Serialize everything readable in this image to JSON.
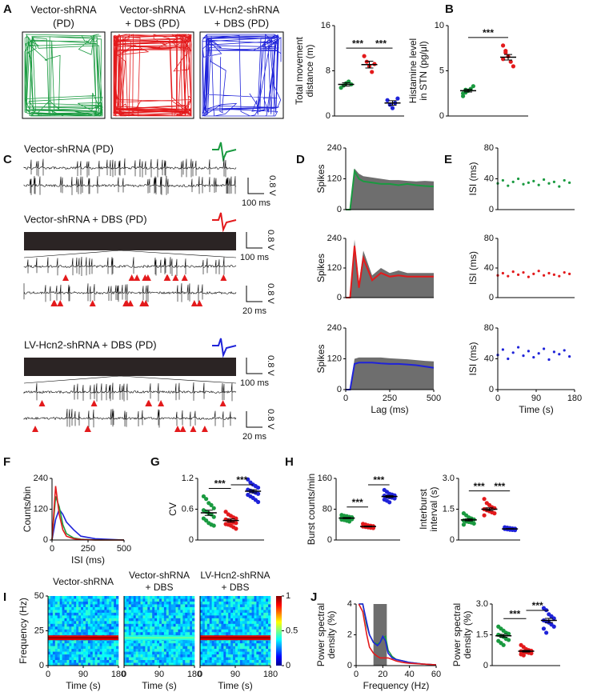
{
  "panel_labels": [
    "A",
    "B",
    "C",
    "D",
    "E",
    "F",
    "G",
    "H",
    "I",
    "J"
  ],
  "panel_a": {
    "titles": [
      [
        "Vector-shRNA",
        "(PD)"
      ],
      [
        "Vector-shRNA",
        "+ DBS (PD)"
      ],
      [
        "LV-Hcn2-shRNA",
        "+ DBS (PD)"
      ]
    ]
  },
  "panel_c": {
    "conditions": [
      "Vector-shRNA (PD)",
      "Vector-shRNA + DBS (PD)",
      "LV-Hcn2-shRNA + DBS (PD)"
    ],
    "voltage_scale": "0.8 V",
    "time_scales": [
      "100 ms",
      "20 ms"
    ]
  },
  "chart_data": [
    {
      "type": "dot",
      "ylabel": [
        "Total movement",
        "distance (m)"
      ],
      "ylim": [
        0,
        16
      ],
      "yticks": [
        0,
        8,
        16
      ],
      "series": [
        {
          "color": "#1a9a40",
          "values": [
            5.0,
            5.4,
            5.8,
            6.1,
            5.6
          ],
          "mean": 5.6,
          "sem": 0.3
        },
        {
          "color": "#e31a1c",
          "values": [
            10.6,
            9.6,
            8.8,
            7.8,
            9.2
          ],
          "mean": 9.1,
          "sem": 0.6
        },
        {
          "color": "#1f23d9",
          "values": [
            2.8,
            2.0,
            1.4,
            2.3,
            3.1
          ],
          "mean": 2.3,
          "sem": 0.4
        }
      ],
      "significance": [
        {
          "pair": [
            0,
            1
          ],
          "label": "***"
        },
        {
          "pair": [
            1,
            2
          ],
          "label": "***"
        }
      ]
    },
    {
      "type": "dot",
      "ylabel": [
        "Histamine level",
        "in STN (pg/μl)"
      ],
      "ylim": [
        0,
        10
      ],
      "yticks": [
        0,
        5,
        10
      ],
      "series": [
        {
          "color": "#1a9a40",
          "values": [
            2.2,
            2.6,
            2.8,
            3.0,
            3.3,
            2.5,
            2.9
          ],
          "mean": 2.8,
          "sem": 0.15
        },
        {
          "color": "#e31a1c",
          "values": [
            7.8,
            7.2,
            6.6,
            6.0,
            5.5,
            6.3,
            7.0
          ],
          "mean": 6.5,
          "sem": 0.3
        }
      ],
      "significance": [
        {
          "pair": [
            0,
            1
          ],
          "label": "***"
        }
      ]
    },
    {
      "type": "area_line",
      "ylabel": [
        "Spikes"
      ],
      "ylim": [
        0,
        240
      ],
      "yticks": [
        0,
        120,
        240
      ],
      "xlim": [
        0,
        500
      ],
      "x": [
        0,
        25,
        50,
        75,
        100,
        150,
        200,
        250,
        300,
        350,
        400,
        450,
        500
      ],
      "series": [
        {
          "color": "#6e6e6e",
          "values": [
            0,
            0,
            160,
            140,
            130,
            125,
            120,
            115,
            115,
            112,
            110,
            112,
            110
          ]
        },
        {
          "color": "#1a9a40",
          "values": [
            0,
            0,
            150,
            120,
            110,
            105,
            100,
            100,
            95,
            100,
            95,
            92,
            90
          ]
        }
      ]
    },
    {
      "type": "area_line",
      "ylabel": [
        "Spikes"
      ],
      "ylim": [
        0,
        240
      ],
      "yticks": [
        0,
        120,
        240
      ],
      "xlim": [
        0,
        500
      ],
      "x": [
        0,
        25,
        50,
        75,
        100,
        150,
        200,
        250,
        300,
        350,
        400,
        450,
        500
      ],
      "series": [
        {
          "color": "#6e6e6e",
          "values": [
            0,
            0,
            235,
            60,
            190,
            90,
            120,
            100,
            110,
            100,
            100,
            100,
            100
          ]
        },
        {
          "color": "#e31a1c",
          "values": [
            0,
            0,
            210,
            40,
            160,
            70,
            100,
            85,
            90,
            85,
            85,
            85,
            85
          ]
        }
      ]
    },
    {
      "type": "area_line",
      "ylabel": [
        "Spikes"
      ],
      "xlabel": "Lag (ms)",
      "ylim": [
        0,
        240
      ],
      "yticks": [
        0,
        120,
        240
      ],
      "xlim": [
        0,
        500
      ],
      "xticks": [
        0,
        250,
        500
      ],
      "x": [
        0,
        25,
        50,
        75,
        100,
        150,
        200,
        250,
        300,
        350,
        400,
        450,
        500
      ],
      "series": [
        {
          "color": "#6e6e6e",
          "values": [
            0,
            0,
            120,
            125,
            125,
            125,
            125,
            122,
            120,
            118,
            115,
            112,
            110
          ]
        },
        {
          "color": "#1f23d9",
          "values": [
            0,
            0,
            100,
            105,
            105,
            105,
            102,
            100,
            100,
            98,
            95,
            90,
            85
          ]
        }
      ]
    },
    {
      "type": "scatter",
      "ylabel": [
        "ISI (ms)"
      ],
      "ylim": [
        0,
        80
      ],
      "yticks": [
        0,
        40,
        80
      ],
      "xlim": [
        0,
        180
      ],
      "x": [
        0,
        12,
        24,
        36,
        48,
        60,
        72,
        84,
        96,
        108,
        120,
        132,
        144,
        156,
        168
      ],
      "series": [
        {
          "color": "#1a9a40",
          "values": [
            34,
            38,
            31,
            36,
            40,
            33,
            35,
            37,
            32,
            39,
            34,
            36,
            30,
            38,
            35
          ]
        }
      ]
    },
    {
      "type": "scatter",
      "ylabel": [
        "ISI (ms)"
      ],
      "ylim": [
        0,
        80
      ],
      "yticks": [
        0,
        40,
        80
      ],
      "xlim": [
        0,
        180
      ],
      "x": [
        0,
        12,
        24,
        36,
        48,
        60,
        72,
        84,
        96,
        108,
        120,
        132,
        144,
        156,
        168
      ],
      "series": [
        {
          "color": "#e31a1c",
          "values": [
            30,
            33,
            29,
            35,
            31,
            34,
            28,
            32,
            36,
            30,
            33,
            31,
            29,
            34,
            32
          ]
        }
      ]
    },
    {
      "type": "scatter",
      "ylabel": [
        "ISI (ms)"
      ],
      "xlabel": "Time (s)",
      "ylim": [
        0,
        80
      ],
      "yticks": [
        0,
        40,
        80
      ],
      "xlim": [
        0,
        180
      ],
      "xticks": [
        0,
        90,
        180
      ],
      "x": [
        0,
        12,
        24,
        36,
        48,
        60,
        72,
        84,
        96,
        108,
        120,
        132,
        144,
        156,
        168
      ],
      "series": [
        {
          "color": "#1f23d9",
          "values": [
            45,
            52,
            40,
            48,
            55,
            44,
            50,
            42,
            47,
            53,
            39,
            49,
            46,
            51,
            43
          ]
        }
      ]
    },
    {
      "type": "line",
      "ylabel": [
        "Counts/bin"
      ],
      "xlabel": "ISI (ms)",
      "ylim": [
        0,
        240
      ],
      "yticks": [
        0,
        120,
        240
      ],
      "xlim": [
        0,
        500
      ],
      "xticks": [
        0,
        250,
        500
      ],
      "x": [
        0,
        25,
        50,
        75,
        100,
        150,
        200,
        300,
        500
      ],
      "series": [
        {
          "color": "#1f23d9",
          "values": [
            0,
            80,
            120,
            100,
            70,
            40,
            15,
            5,
            0
          ]
        },
        {
          "color": "#1a9a40",
          "values": [
            0,
            170,
            130,
            60,
            25,
            8,
            3,
            0,
            0
          ]
        },
        {
          "color": "#e31a1c",
          "values": [
            0,
            210,
            100,
            40,
            15,
            5,
            2,
            0,
            0
          ]
        }
      ]
    },
    {
      "type": "dot",
      "ylabel": [
        "CV"
      ],
      "ylim": [
        0,
        1.2
      ],
      "yticks": [
        0,
        0.6,
        1.2
      ],
      "series": [
        {
          "color": "#1a9a40",
          "values": [
            0.85,
            0.8,
            0.72,
            0.68,
            0.62,
            0.58,
            0.55,
            0.52,
            0.5,
            0.45,
            0.42,
            0.38,
            0.33,
            0.3,
            0.28
          ],
          "mean": 0.53,
          "sem": 0.05
        },
        {
          "color": "#e31a1c",
          "values": [
            0.55,
            0.5,
            0.47,
            0.44,
            0.42,
            0.4,
            0.38,
            0.36,
            0.34,
            0.33,
            0.31,
            0.3,
            0.28,
            0.25,
            0.22
          ],
          "mean": 0.38,
          "sem": 0.03
        },
        {
          "color": "#1f23d9",
          "values": [
            1.18,
            1.12,
            1.08,
            1.05,
            1.02,
            0.98,
            0.96,
            0.94,
            0.92,
            0.9,
            0.88,
            0.85,
            0.82,
            0.78,
            0.74
          ],
          "mean": 0.95,
          "sem": 0.03
        }
      ],
      "significance": [
        {
          "pair": [
            0,
            1
          ],
          "label": "***"
        },
        {
          "pair": [
            1,
            2
          ],
          "label": "***"
        }
      ]
    },
    {
      "type": "dot",
      "ylabel": [
        "Burst counts/min"
      ],
      "ylim": [
        0,
        160
      ],
      "yticks": [
        0,
        80,
        160
      ],
      "series": [
        {
          "color": "#1a9a40",
          "values": [
            65,
            63,
            62,
            60,
            59,
            58,
            57,
            56,
            55,
            54,
            53,
            52,
            50,
            48
          ],
          "mean": 57,
          "sem": 1.5
        },
        {
          "color": "#e31a1c",
          "values": [
            42,
            40,
            38,
            37,
            36,
            35,
            34,
            33,
            32,
            31
          ],
          "mean": 35,
          "sem": 1
        },
        {
          "color": "#1f23d9",
          "values": [
            130,
            125,
            120,
            118,
            116,
            115,
            113,
            111,
            110,
            108,
            105,
            102,
            98
          ],
          "mean": 113,
          "sem": 2.5
        }
      ],
      "significance": [
        {
          "pair": [
            0,
            1
          ],
          "label": "***"
        },
        {
          "pair": [
            1,
            2
          ],
          "label": "***"
        }
      ]
    },
    {
      "type": "dot",
      "ylabel": [
        "Interburst",
        "interval (s)"
      ],
      "ylim": [
        0,
        3
      ],
      "yticks": [
        0,
        1.5,
        {
          "value": 3,
          "label": "3.0"
        }
      ],
      "series": [
        {
          "color": "#1a9a40",
          "values": [
            1.3,
            1.2,
            1.1,
            1.05,
            1.0,
            0.95,
            0.9,
            0.88,
            0.85,
            0.8,
            0.75
          ],
          "mean": 0.98,
          "sem": 0.05
        },
        {
          "color": "#e31a1c",
          "values": [
            2.0,
            1.8,
            1.7,
            1.6,
            1.55,
            1.5,
            1.45,
            1.4,
            1.35,
            1.3,
            1.2
          ],
          "mean": 1.5,
          "sem": 0.07
        },
        {
          "color": "#1f23d9",
          "values": [
            0.62,
            0.6,
            0.58,
            0.56,
            0.55,
            0.54,
            0.52,
            0.5,
            0.49,
            0.48
          ],
          "mean": 0.54,
          "sem": 0.015
        }
      ],
      "significance": [
        {
          "pair": [
            0,
            1
          ],
          "label": "***"
        },
        {
          "pair": [
            1,
            2
          ],
          "label": "***"
        }
      ]
    },
    {
      "type": "spectrogram",
      "title": [
        "Vector-shRNA"
      ],
      "title_color": "#1a9a40",
      "ylabel": [
        "Frequency (Hz)"
      ],
      "xlabel": "Time (s)",
      "ylim": [
        0,
        50
      ],
      "yticks": [
        0,
        25,
        50
      ],
      "xlim": [
        0,
        180
      ],
      "xticks": [
        0,
        90,
        180
      ],
      "band_frequency": 20,
      "band_power": 0.9
    },
    {
      "type": "spectrogram",
      "title": [
        "Vector-shRNA",
        "+ DBS"
      ],
      "title_color": "#e31a1c",
      "xlabel": "Time (s)",
      "ylim": [
        0,
        50
      ],
      "xlim": [
        0,
        180
      ],
      "xticks": [
        0,
        90,
        180
      ],
      "band_frequency": 20,
      "band_power": 0.4
    },
    {
      "type": "spectrogram",
      "title": [
        "LV-Hcn2-shRNA",
        "+ DBS"
      ],
      "title_color": "#1f23d9",
      "xlabel": "Time (s)",
      "ylim": [
        0,
        50
      ],
      "xlim": [
        0,
        180
      ],
      "xticks": [
        0,
        90,
        180
      ],
      "band_frequency": 20,
      "band_power": 0.9,
      "colorbar_ticks": [
        0,
        0.5,
        1
      ]
    },
    {
      "type": "line",
      "ylabel": [
        "Power spectral",
        "density (%)"
      ],
      "xlabel": "Frequency (Hz)",
      "ylim": [
        0,
        4
      ],
      "yticks": [
        0,
        2,
        4
      ],
      "xlim": [
        0,
        60
      ],
      "xticks": [
        0,
        20,
        40,
        60
      ],
      "highlight": [
        13,
        23
      ],
      "x": [
        2,
        5,
        8,
        10,
        13,
        16,
        18,
        20,
        22,
        24,
        27,
        30,
        35,
        40,
        50,
        60
      ],
      "series": [
        {
          "color": "#1a9a40",
          "values": [
            4,
            4,
            2.6,
            2.0,
            1.5,
            1.4,
            1.5,
            1.8,
            1.9,
            1.0,
            0.6,
            0.4,
            0.3,
            0.2,
            0.1,
            0.05
          ]
        },
        {
          "color": "#1f23d9",
          "values": [
            4,
            4,
            2.8,
            2.0,
            1.5,
            1.3,
            1.5,
            1.9,
            1.6,
            0.8,
            0.5,
            0.4,
            0.3,
            0.2,
            0.1,
            0.05
          ]
        },
        {
          "color": "#e31a1c",
          "values": [
            4,
            3.5,
            2.0,
            1.2,
            0.8,
            0.6,
            0.5,
            0.5,
            0.5,
            0.5,
            0.4,
            0.3,
            0.2,
            0.15,
            0.1,
            0.05
          ]
        }
      ]
    },
    {
      "type": "dot",
      "ylabel": [
        "Power spectral",
        "density (%)"
      ],
      "ylim": [
        0,
        3
      ],
      "yticks": [
        0,
        1.5,
        {
          "value": 3,
          "label": "3.0"
        }
      ],
      "series": [
        {
          "color": "#1a9a40",
          "values": [
            1.9,
            1.8,
            1.7,
            1.6,
            1.55,
            1.5,
            1.45,
            1.4,
            1.3,
            1.25,
            1.2,
            1.1,
            1.0
          ],
          "mean": 1.45,
          "sem": 0.07
        },
        {
          "color": "#e31a1c",
          "values": [
            1.0,
            0.9,
            0.8,
            0.75,
            0.72,
            0.7,
            0.68,
            0.65,
            0.62,
            0.6,
            0.55,
            0.5
          ],
          "mean": 0.7,
          "sem": 0.04
        },
        {
          "color": "#1f23d9",
          "values": [
            2.8,
            2.7,
            2.5,
            2.4,
            2.3,
            2.2,
            2.15,
            2.1,
            2.0,
            1.9,
            1.8,
            1.6
          ],
          "mean": 2.2,
          "sem": 0.1
        }
      ],
      "significance": [
        {
          "pair": [
            0,
            1
          ],
          "label": "***"
        },
        {
          "pair": [
            1,
            2
          ],
          "label": "***"
        }
      ]
    }
  ]
}
